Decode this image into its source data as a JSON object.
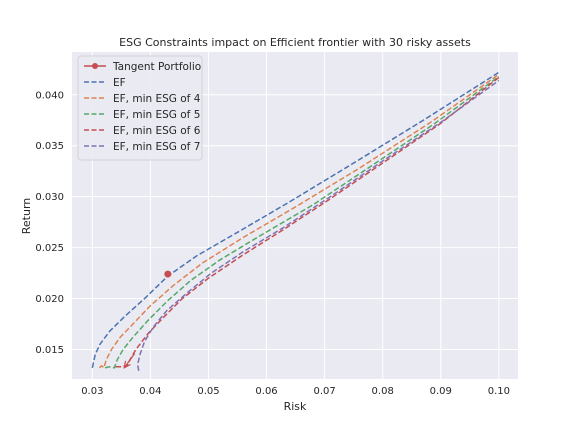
{
  "chart_data": {
    "type": "line",
    "title": "ESG Constraints impact on Efficient frontier with 30 risky assets",
    "xlabel": "Risk",
    "ylabel": "Return",
    "xlim": [
      0.0265,
      0.1033
    ],
    "ylim": [
      0.0121,
      0.0442
    ],
    "xticks": [
      "0.03",
      "0.04",
      "0.05",
      "0.06",
      "0.07",
      "0.08",
      "0.09",
      "0.10"
    ],
    "yticks": [
      "0.015",
      "0.020",
      "0.025",
      "0.030",
      "0.035",
      "0.040"
    ],
    "grid": true,
    "legend_position": "upper left",
    "series": [
      {
        "name": "EF",
        "style": "dashed",
        "color": "#4c72b0",
        "x": [
          0.03,
          0.0305,
          0.0313,
          0.033,
          0.0355,
          0.039,
          0.043,
          0.048,
          0.055,
          0.064,
          0.075,
          0.087,
          0.1
        ],
        "y": [
          0.0132,
          0.0145,
          0.0155,
          0.0168,
          0.0182,
          0.02,
          0.0222,
          0.0242,
          0.0265,
          0.0295,
          0.0333,
          0.0375,
          0.0422
        ]
      },
      {
        "name": "EF, min ESG of 4",
        "style": "dashed",
        "color": "#dd8452",
        "x": [
          0.0312,
          0.0316,
          0.032,
          0.0324,
          0.0333,
          0.0348,
          0.037,
          0.04,
          0.044,
          0.049,
          0.056,
          0.065,
          0.076,
          0.088,
          0.1
        ],
        "y": [
          0.0132,
          0.0134,
          0.0132,
          0.014,
          0.015,
          0.0162,
          0.0175,
          0.0193,
          0.0213,
          0.0235,
          0.026,
          0.029,
          0.0328,
          0.0372,
          0.042
        ]
      },
      {
        "name": "EF, min ESG of 5",
        "style": "dashed",
        "color": "#55a868",
        "x": [
          0.0322,
          0.033,
          0.0338,
          0.0343,
          0.0353,
          0.037,
          0.0395,
          0.043,
          0.047,
          0.052,
          0.059,
          0.068,
          0.078,
          0.089,
          0.1
        ],
        "y": [
          0.0132,
          0.0133,
          0.0132,
          0.014,
          0.015,
          0.0162,
          0.0178,
          0.0198,
          0.0218,
          0.0238,
          0.0262,
          0.0292,
          0.033,
          0.0372,
          0.0418
        ]
      },
      {
        "name": "EF, min ESG of 6",
        "style": "dashed",
        "color": "#c44e52",
        "x": [
          0.034,
          0.035,
          0.036,
          0.0365,
          0.0375,
          0.0395,
          0.042,
          0.0455,
          0.05,
          0.056,
          0.063,
          0.071,
          0.08,
          0.09,
          0.1
        ],
        "y": [
          0.0133,
          0.0133,
          0.0134,
          0.014,
          0.015,
          0.0165,
          0.018,
          0.02,
          0.022,
          0.0243,
          0.0268,
          0.0298,
          0.0333,
          0.0372,
          0.0417
        ]
      },
      {
        "name": "EF, min ESG of 7",
        "style": "dashed",
        "color": "#8172b3",
        "x": [
          0.038,
          0.0378,
          0.0382,
          0.039,
          0.0405,
          0.0428,
          0.0462,
          0.0505,
          0.056,
          0.063,
          0.071,
          0.08,
          0.09,
          0.1
        ],
        "y": [
          0.0129,
          0.0135,
          0.0145,
          0.0158,
          0.0172,
          0.0188,
          0.0205,
          0.0225,
          0.0246,
          0.027,
          0.03,
          0.0335,
          0.0373,
          0.0414
        ]
      },
      {
        "name": "Tangent Portfolio",
        "style": "solid-marker",
        "color": "#c44e52",
        "x": [
          0.043
        ],
        "y": [
          0.0224
        ]
      }
    ],
    "annotations": [
      {
        "type": "arrow",
        "color": "#c44e52",
        "from": [
          0.0373,
          0.0146
        ],
        "to": [
          0.0355,
          0.0132
        ]
      }
    ],
    "legend": [
      "Tangent Portfolio",
      "EF",
      "EF, min ESG of 4",
      "EF, min ESG of 5",
      "EF, min ESG of 6",
      "EF, min ESG of 7"
    ]
  }
}
